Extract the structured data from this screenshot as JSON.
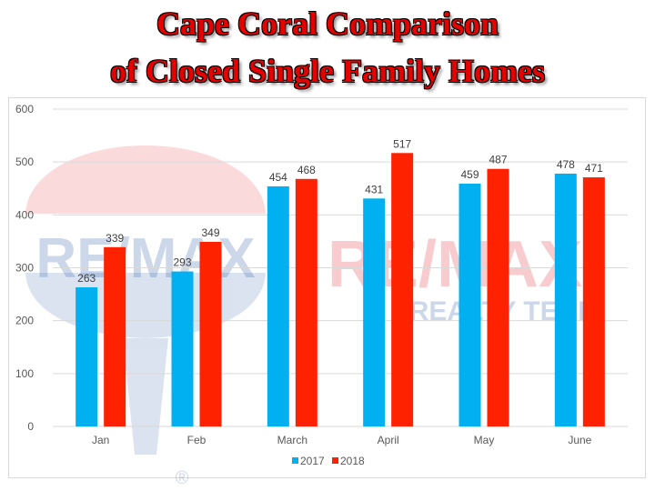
{
  "title": {
    "line1": "Cape Coral Comparison",
    "line2": "of Closed Single Family Homes"
  },
  "watermark": {
    "brand": "RE/MAX",
    "tagline": "REALTY TEAM",
    "registered": "®"
  },
  "colors": {
    "title": "#e60000",
    "series_2017": "#00b0f0",
    "series_2018": "#ff2200",
    "grid": "#d9d9d9"
  },
  "chart_data": {
    "type": "bar",
    "categories": [
      "Jan",
      "Feb",
      "March",
      "April",
      "May",
      "June"
    ],
    "series": [
      {
        "name": "2017",
        "values": [
          263,
          293,
          454,
          431,
          459,
          478
        ]
      },
      {
        "name": "2018",
        "values": [
          339,
          349,
          468,
          517,
          487,
          471
        ]
      }
    ],
    "ylim": [
      0,
      600
    ],
    "yticks": [
      0,
      100,
      200,
      300,
      400,
      500,
      600
    ],
    "grid": true,
    "legend_position": "bottom"
  }
}
